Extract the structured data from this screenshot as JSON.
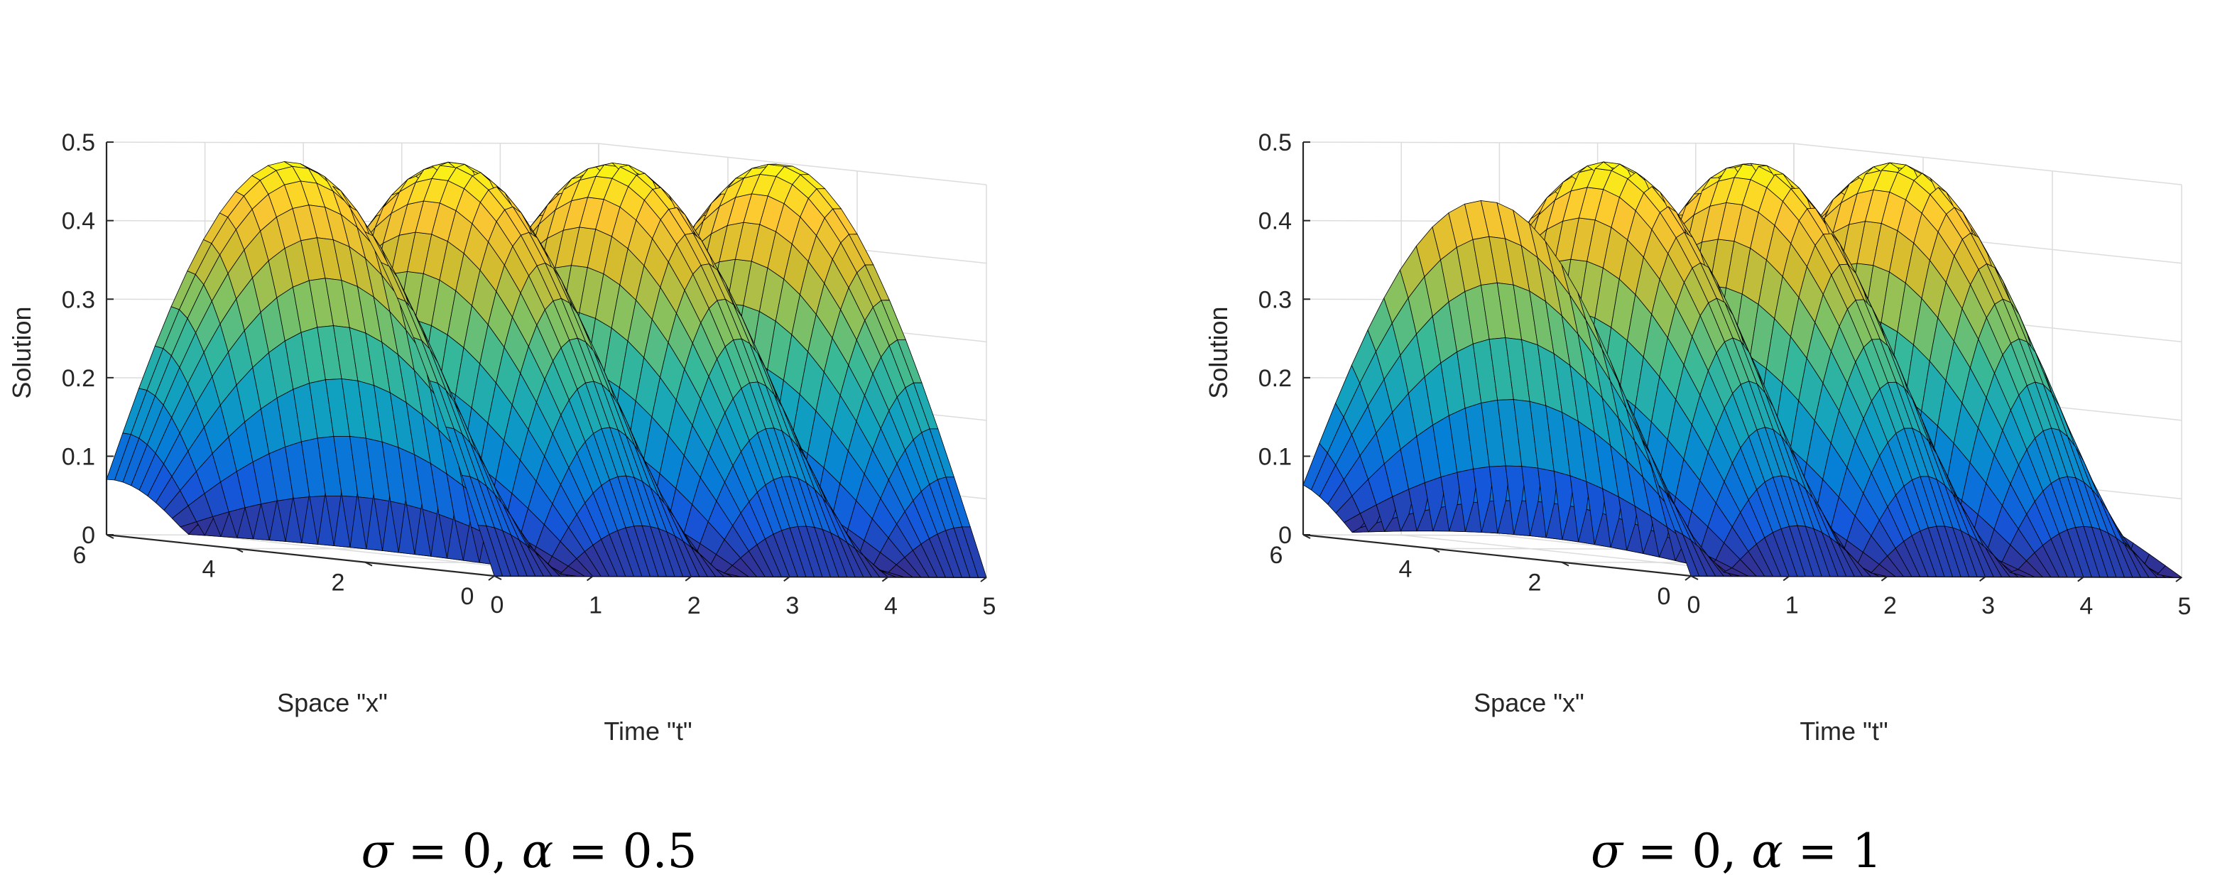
{
  "chart_data": [
    {
      "type": "surface",
      "caption": {
        "sigma": "σ",
        "eq1": " = 0, ",
        "alpha": "α",
        "eq2": " = 0.5"
      },
      "xlabel": "Time \"t\"",
      "ylabel": "Space \"x\"",
      "zlabel": "Solution",
      "x_ticks": [
        "0",
        "1",
        "2",
        "3",
        "4",
        "5"
      ],
      "y_ticks": [
        "0",
        "2",
        "4",
        "6"
      ],
      "z_ticks": [
        "0",
        "0.1",
        "0.2",
        "0.3",
        "0.4",
        "0.5"
      ],
      "xlim": [
        0,
        5
      ],
      "ylim": [
        0,
        6
      ],
      "zlim": [
        0,
        0.5
      ],
      "grid": true,
      "colormap": "parula",
      "function": "0.5*|sin(x/2)*cos(omega*t + phase)|",
      "omega": 1.9,
      "phase": 0.0,
      "edge_color": "#000000"
    },
    {
      "type": "surface",
      "caption": {
        "sigma": "σ",
        "eq1": " = 0, ",
        "alpha": "α",
        "eq2": " = 1"
      },
      "xlabel": "Time \"t\"",
      "ylabel": "Space \"x\"",
      "zlabel": "Solution",
      "x_ticks": [
        "0",
        "1",
        "2",
        "3",
        "4",
        "5"
      ],
      "y_ticks": [
        "0",
        "2",
        "4",
        "6"
      ],
      "z_ticks": [
        "0",
        "0.1",
        "0.2",
        "0.3",
        "0.4",
        "0.5"
      ],
      "xlim": [
        0,
        5
      ],
      "ylim": [
        0,
        6
      ],
      "zlim": [
        0,
        0.5
      ],
      "grid": true,
      "colormap": "parula",
      "function": "0.5*|sin(x/2)*cos(omega*t + phase)|",
      "omega": 2.15,
      "phase": 0.45,
      "edge_color": "#000000"
    }
  ]
}
